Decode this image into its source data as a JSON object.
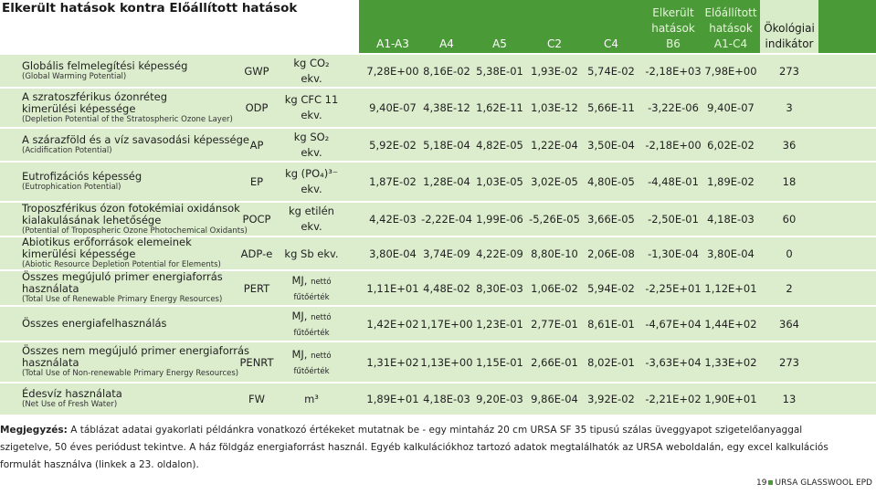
{
  "title": "Elkerült hatások kontra Előállított hatások",
  "header": {
    "cols": [
      "A1-A3",
      "A4",
      "A5",
      "C2",
      "C4"
    ],
    "b6": [
      "Elkerült",
      "hatások",
      "B6"
    ],
    "a1c4": [
      "Előállított",
      "hatások",
      "A1-C4"
    ],
    "eco": [
      "Ökológiai",
      "indikátor"
    ]
  },
  "rows": [
    {
      "name": "Globális felmelegítési képesség",
      "sub": "(Global Warming Potential)",
      "abbr": "GWP",
      "unit1": "kg CO₂",
      "unit2": "ekv.",
      "values": [
        "7,28E+00",
        "8,16E-02",
        "5,38E-01",
        "1,93E-02",
        "5,74E-02",
        "-2,18E+03",
        "7,98E+00"
      ],
      "eco": "273"
    },
    {
      "name": "A szratoszférikus ózonréteg\nkimerülési képessége",
      "sub": "(Depletion Potential of the Stratospheric Ozone Layer)",
      "abbr": "ODP",
      "unit1": "kg CFC 11",
      "unit2": "ekv.",
      "values": [
        "9,40E-07",
        "4,38E-12",
        "1,62E-11",
        "1,03E-12",
        "5,66E-11",
        "-3,22E-06",
        "9,40E-07"
      ],
      "eco": "3"
    },
    {
      "name": "A szárazföld és a víz savasodási képessége",
      "sub": "(Acidification Potential)",
      "abbr": "AP",
      "unit1": "kg SO₂",
      "unit2": "ekv.",
      "values": [
        "5,92E-02",
        "5,18E-04",
        "4,82E-05",
        "1,22E-04",
        "3,50E-04",
        "-2,18E+00",
        "6,02E-02"
      ],
      "eco": "36"
    },
    {
      "name": "Eutrofizációs képesség",
      "sub": "(Eutrophication Potential)",
      "abbr": "EP",
      "unit1": "kg (PO₄)³⁻",
      "unit2": "ekv.",
      "values": [
        "1,87E-02",
        "1,28E-04",
        "1,03E-05",
        "3,02E-05",
        "4,80E-05",
        "-4,48E-01",
        "1,89E-02"
      ],
      "eco": "18"
    },
    {
      "name": "Troposzférikus ózon fotokémiai oxidánsok\nkialakulásának lehetősége",
      "sub": "(Potential of Tropospheric Ozone Photochemical Oxidants)",
      "abbr": "POCP",
      "unit1": "kg etilén",
      "unit2": "ekv.",
      "values": [
        "4,42E-03",
        "-2,22E-04",
        "1,99E-06",
        "-5,26E-05",
        "3,66E-05",
        "-2,50E-01",
        "4,18E-03"
      ],
      "eco": "60"
    },
    {
      "name": "Abiotikus erőforrások elemeinek\nkimerülési képessége",
      "sub": "(Abiotic Resource Depletion Potential for Elements)",
      "abbr": "ADP-e",
      "unit1": "kg Sb ekv.",
      "unit2": "",
      "values": [
        "3,80E-04",
        "3,74E-09",
        "4,22E-09",
        "8,80E-10",
        "2,06E-08",
        "-1,30E-04",
        "3,80E-04"
      ],
      "eco": "0"
    },
    {
      "name": "Összes megújuló primer energiaforrás\nhasználata",
      "sub": "(Total Use of Renewable Primary Energy Resources)",
      "abbr": "PERT",
      "unit1": "MJ, nettó",
      "unit2": "fűtőérték",
      "values": [
        "1,11E+01",
        "4,48E-02",
        "8,30E-03",
        "1,06E-02",
        "5,94E-02",
        "-2,25E+01",
        "1,12E+01"
      ],
      "eco": "2"
    },
    {
      "name": "Összes energiafelhasználás",
      "sub": "",
      "abbr": "",
      "unit1": "MJ, nettó",
      "unit2": "fűtőérték",
      "values": [
        "1,42E+02",
        "1,17E+00",
        "1,23E-01",
        "2,77E-01",
        "8,61E-01",
        "-4,67E+04",
        "1,44E+02"
      ],
      "eco": "364"
    },
    {
      "name": "Összes nem megújuló primer energiaforrás\nhasználata",
      "sub": "(Total Use of Non-renewable Primary Energy Resources)",
      "abbr": "PENRT",
      "unit1": "MJ, nettó",
      "unit2": "fűtőérték",
      "values": [
        "1,31E+02",
        "1,13E+00",
        "1,15E-01",
        "2,66E-01",
        "8,02E-01",
        "-3,63E+04",
        "1,33E+02"
      ],
      "eco": "273"
    },
    {
      "name": "Édesvíz használata",
      "sub": "(Net Use of Fresh Water)",
      "abbr": "FW",
      "unit1": "m³",
      "unit2": "",
      "values": [
        "1,89E+01",
        "4,18E-03",
        "9,20E-03",
        "9,86E-04",
        "3,92E-02",
        "-2,21E+02",
        "1,90E+01"
      ],
      "eco": "13"
    }
  ],
  "note": {
    "label": "Megjegyzés:",
    "text": " A táblázat adatai gyakorlati példánkra vonatkozó értékeket mutatnak be - egy mintaház 20 cm URSA SF 35 tipusú szálas üveggyapot szigetelőanyaggal szigetelve, 50 éves periódust tekintve. A ház földgáz energiaforrást használ. Egyéb kalkulációkhoz tartozó adatok megtalálhatók az URSA weboldalán, egy excel kalkulációs formulát használva (linkek a 23. oldalon)."
  },
  "footer": {
    "page": "19",
    "brand": "URSA GLASSWOOL EPD"
  },
  "colors": {
    "header": "#4a9a38",
    "band": "#dcedcd"
  }
}
